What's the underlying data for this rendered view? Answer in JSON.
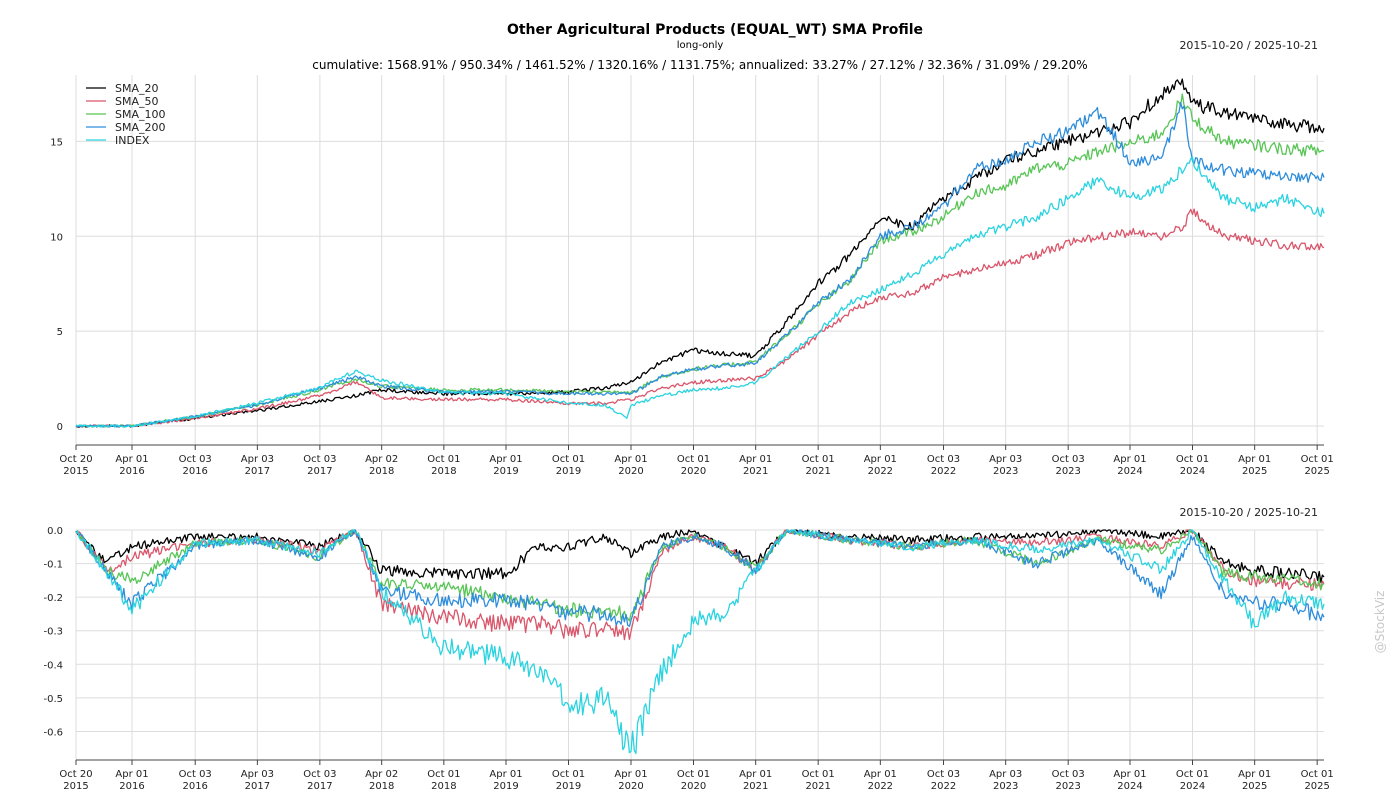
{
  "title": "Other Agricultural Products (EQUAL_WT) SMA Profile",
  "subtitle": "long-only",
  "stats_line": "cumulative: 1568.91% / 950.34% / 1461.52% / 1320.16% / 1131.75%; annualized: 33.27% / 27.12% / 32.36% / 31.09% / 29.20%",
  "date_range_top": "2015-10-20 / 2025-10-21",
  "date_range_bottom": "2015-10-20 / 2025-10-21",
  "watermark": "@StockViz",
  "colors": {
    "SMA_20": "#000000",
    "SMA_50": "#d9566b",
    "SMA_100": "#58c556",
    "SMA_200": "#2e8ddb",
    "INDEX": "#2ad3df"
  },
  "chart_data": [
    {
      "type": "line",
      "panel": "cumulative",
      "ylim": [
        -1,
        18.5
      ],
      "yticks": [
        0,
        5,
        10,
        15
      ],
      "grid": true,
      "legend": "top-left",
      "xticks": [
        {
          "date": "2015-10-20",
          "label": [
            "Oct 20",
            "2015"
          ]
        },
        {
          "date": "2016-04-01",
          "label": [
            "Apr 01",
            "2016"
          ]
        },
        {
          "date": "2016-10-03",
          "label": [
            "Oct 03",
            "2016"
          ]
        },
        {
          "date": "2017-04-03",
          "label": [
            "Apr 03",
            "2017"
          ]
        },
        {
          "date": "2017-10-03",
          "label": [
            "Oct 03",
            "2017"
          ]
        },
        {
          "date": "2018-04-02",
          "label": [
            "Apr 02",
            "2018"
          ]
        },
        {
          "date": "2018-10-01",
          "label": [
            "Oct 01",
            "2018"
          ]
        },
        {
          "date": "2019-04-01",
          "label": [
            "Apr 01",
            "2019"
          ]
        },
        {
          "date": "2019-10-01",
          "label": [
            "Oct 01",
            "2019"
          ]
        },
        {
          "date": "2020-04-01",
          "label": [
            "Apr 01",
            "2020"
          ]
        },
        {
          "date": "2020-10-01",
          "label": [
            "Oct 01",
            "2020"
          ]
        },
        {
          "date": "2021-04-01",
          "label": [
            "Apr 01",
            "2021"
          ]
        },
        {
          "date": "2021-10-01",
          "label": [
            "Oct 01",
            "2021"
          ]
        },
        {
          "date": "2022-04-01",
          "label": [
            "Apr 01",
            "2022"
          ]
        },
        {
          "date": "2022-10-03",
          "label": [
            "Oct 03",
            "2022"
          ]
        },
        {
          "date": "2023-04-03",
          "label": [
            "Apr 03",
            "2023"
          ]
        },
        {
          "date": "2023-10-03",
          "label": [
            "Oct 03",
            "2023"
          ]
        },
        {
          "date": "2024-04-01",
          "label": [
            "Apr 01",
            "2024"
          ]
        },
        {
          "date": "2024-10-01",
          "label": [
            "Oct 01",
            "2024"
          ]
        },
        {
          "date": "2025-04-01",
          "label": [
            "Apr 01",
            "2025"
          ]
        },
        {
          "date": "2025-10-01",
          "label": [
            "Oct 01",
            "2025"
          ]
        }
      ],
      "series": [
        {
          "name": "SMA_20",
          "x": [
            "2015-10-20",
            "2016-04-01",
            "2016-10-01",
            "2017-04-01",
            "2017-10-01",
            "2018-01-15",
            "2018-04-01",
            "2018-10-01",
            "2019-04-01",
            "2019-10-01",
            "2020-01-15",
            "2020-04-01",
            "2020-07-01",
            "2020-10-01",
            "2021-01-01",
            "2021-04-01",
            "2021-07-01",
            "2021-10-01",
            "2022-01-01",
            "2022-04-01",
            "2022-07-01",
            "2022-10-01",
            "2023-01-01",
            "2023-04-01",
            "2023-07-01",
            "2023-10-01",
            "2024-01-01",
            "2024-04-01",
            "2024-07-01",
            "2024-09-01",
            "2024-10-01",
            "2025-01-01",
            "2025-04-01",
            "2025-07-01",
            "2025-10-21"
          ],
          "y": [
            0,
            0,
            0.4,
            0.8,
            1.3,
            1.6,
            1.9,
            1.7,
            1.7,
            1.8,
            2.0,
            2.3,
            3.4,
            4.0,
            3.8,
            3.7,
            5.5,
            7.5,
            9.0,
            11.0,
            10.5,
            12.0,
            13.0,
            14.0,
            14.5,
            15.0,
            15.5,
            16.0,
            17.5,
            18.0,
            17.0,
            16.5,
            16.2,
            15.9,
            15.7
          ]
        },
        {
          "name": "SMA_50",
          "x": [
            "2015-10-20",
            "2016-04-01",
            "2016-10-01",
            "2017-04-01",
            "2017-10-01",
            "2018-01-15",
            "2018-04-01",
            "2018-10-01",
            "2019-04-01",
            "2019-10-01",
            "2020-01-15",
            "2020-04-01",
            "2020-07-01",
            "2020-10-01",
            "2021-01-01",
            "2021-04-01",
            "2021-07-01",
            "2021-10-01",
            "2022-01-01",
            "2022-04-01",
            "2022-07-01",
            "2022-10-01",
            "2023-01-01",
            "2023-04-01",
            "2023-07-01",
            "2023-10-01",
            "2024-01-01",
            "2024-04-01",
            "2024-07-01",
            "2024-09-01",
            "2024-10-01",
            "2025-01-01",
            "2025-04-01",
            "2025-07-01",
            "2025-10-21"
          ],
          "y": [
            0,
            0,
            0.4,
            0.9,
            1.6,
            2.3,
            1.5,
            1.4,
            1.4,
            1.2,
            1.2,
            1.4,
            2.0,
            2.3,
            2.4,
            2.5,
            3.5,
            4.8,
            6.0,
            6.8,
            7.0,
            7.8,
            8.2,
            8.6,
            9.0,
            9.6,
            10.0,
            10.2,
            10.0,
            10.5,
            11.3,
            10.0,
            9.8,
            9.5,
            9.4
          ]
        },
        {
          "name": "SMA_100",
          "x": [
            "2015-10-20",
            "2016-04-01",
            "2016-10-01",
            "2017-04-01",
            "2017-10-01",
            "2018-01-15",
            "2018-04-01",
            "2018-10-01",
            "2019-04-01",
            "2019-10-01",
            "2020-01-15",
            "2020-04-01",
            "2020-07-01",
            "2020-10-01",
            "2021-01-01",
            "2021-04-01",
            "2021-07-01",
            "2021-10-01",
            "2022-01-01",
            "2022-04-01",
            "2022-07-01",
            "2022-10-01",
            "2023-01-01",
            "2023-04-01",
            "2023-07-01",
            "2023-10-01",
            "2024-01-01",
            "2024-04-01",
            "2024-07-01",
            "2024-09-01",
            "2024-10-01",
            "2025-01-01",
            "2025-04-01",
            "2025-07-01",
            "2025-10-21"
          ],
          "y": [
            0,
            0,
            0.5,
            1.1,
            1.9,
            2.5,
            2.1,
            1.9,
            1.9,
            1.8,
            1.8,
            1.8,
            2.6,
            3.0,
            3.2,
            3.4,
            4.8,
            6.4,
            7.6,
            9.8,
            10.2,
            11.0,
            12.3,
            12.6,
            13.6,
            13.8,
            14.5,
            14.9,
            15.4,
            17.2,
            16.2,
            15.0,
            14.8,
            14.6,
            14.5
          ]
        },
        {
          "name": "SMA_200",
          "x": [
            "2015-10-20",
            "2016-04-01",
            "2016-10-01",
            "2017-04-01",
            "2017-10-01",
            "2018-01-15",
            "2018-04-01",
            "2018-10-01",
            "2019-04-01",
            "2019-10-01",
            "2020-01-15",
            "2020-04-01",
            "2020-07-01",
            "2020-10-01",
            "2021-01-01",
            "2021-04-01",
            "2021-07-01",
            "2021-10-01",
            "2022-01-01",
            "2022-04-01",
            "2022-07-01",
            "2022-10-01",
            "2023-01-01",
            "2023-04-01",
            "2023-07-01",
            "2023-10-01",
            "2024-01-01",
            "2024-04-01",
            "2024-07-01",
            "2024-09-01",
            "2024-10-01",
            "2025-01-01",
            "2025-04-01",
            "2025-07-01",
            "2025-10-21"
          ],
          "y": [
            0,
            0,
            0.5,
            1.1,
            2.0,
            2.6,
            2.1,
            1.8,
            1.8,
            1.7,
            1.7,
            1.7,
            2.6,
            3.0,
            3.2,
            3.3,
            4.8,
            6.5,
            7.7,
            10.0,
            10.5,
            11.5,
            13.5,
            14.0,
            15.0,
            15.5,
            16.5,
            14.0,
            14.0,
            17.0,
            14.0,
            13.5,
            13.3,
            13.1,
            13.1
          ]
        },
        {
          "name": "INDEX",
          "x": [
            "2015-10-20",
            "2016-04-01",
            "2016-10-01",
            "2017-04-01",
            "2017-10-01",
            "2018-01-15",
            "2018-04-01",
            "2018-10-01",
            "2019-04-01",
            "2019-10-01",
            "2020-01-15",
            "2020-03-20",
            "2020-04-01",
            "2020-07-01",
            "2020-10-01",
            "2021-01-01",
            "2021-04-01",
            "2021-07-01",
            "2021-10-01",
            "2022-01-01",
            "2022-04-01",
            "2022-07-01",
            "2022-10-01",
            "2023-01-01",
            "2023-04-01",
            "2023-07-01",
            "2023-10-01",
            "2024-01-01",
            "2024-04-01",
            "2024-07-01",
            "2024-09-01",
            "2024-10-01",
            "2025-01-01",
            "2025-04-01",
            "2025-07-01",
            "2025-10-21"
          ],
          "y": [
            0,
            0,
            0.5,
            1.2,
            2.0,
            2.9,
            2.4,
            1.8,
            1.7,
            1.2,
            1.1,
            0.4,
            1.1,
            1.6,
            1.9,
            2.0,
            2.3,
            3.6,
            5.0,
            6.5,
            7.2,
            8.0,
            9.0,
            10.0,
            10.5,
            11.0,
            12.0,
            13.0,
            12.0,
            12.5,
            13.5,
            14.0,
            12.0,
            11.5,
            12.0,
            11.2
          ]
        }
      ]
    },
    {
      "type": "line",
      "panel": "drawdown",
      "ylim": [
        -0.685,
        0
      ],
      "yticks": [
        0.0,
        -0.1,
        -0.2,
        -0.3,
        -0.4,
        -0.5,
        -0.6
      ],
      "ytick_labels": [
        "0.0",
        "-0.1",
        "-0.2",
        "-0.3",
        "-0.4",
        "-0.5",
        "-0.6"
      ],
      "grid": true,
      "series": [
        {
          "name": "SMA_20",
          "x": [
            "2015-10-20",
            "2016-01-15",
            "2016-04-01",
            "2016-10-01",
            "2017-04-01",
            "2017-10-01",
            "2018-01-15",
            "2018-04-01",
            "2018-10-01",
            "2019-04-01",
            "2019-07-01",
            "2019-10-01",
            "2020-01-15",
            "2020-04-01",
            "2020-07-01",
            "2020-10-01",
            "2021-01-01",
            "2021-04-01",
            "2021-07-01",
            "2022-01-01",
            "2022-07-01",
            "2023-01-01",
            "2023-07-01",
            "2024-01-01",
            "2024-07-01",
            "2024-10-01",
            "2025-01-01",
            "2025-04-01",
            "2025-07-01",
            "2025-10-21"
          ],
          "y": [
            0,
            -0.1,
            -0.05,
            -0.02,
            -0.02,
            -0.05,
            0,
            -0.12,
            -0.13,
            -0.13,
            -0.05,
            -0.05,
            -0.02,
            -0.07,
            -0.02,
            0,
            -0.05,
            -0.1,
            0,
            -0.02,
            -0.03,
            -0.02,
            -0.02,
            0,
            -0.02,
            0,
            -0.1,
            -0.12,
            -0.13,
            -0.14
          ]
        },
        {
          "name": "SMA_50",
          "x": [
            "2015-10-20",
            "2016-01-15",
            "2016-04-01",
            "2016-10-01",
            "2017-04-01",
            "2017-10-01",
            "2018-01-15",
            "2018-04-01",
            "2018-10-01",
            "2019-04-01",
            "2019-07-01",
            "2019-10-01",
            "2020-01-15",
            "2020-04-01",
            "2020-07-01",
            "2020-10-01",
            "2021-01-01",
            "2021-04-01",
            "2021-07-01",
            "2022-01-01",
            "2022-07-01",
            "2023-01-01",
            "2023-07-01",
            "2024-01-01",
            "2024-07-01",
            "2024-10-01",
            "2025-01-01",
            "2025-04-01",
            "2025-07-01",
            "2025-10-21"
          ],
          "y": [
            0,
            -0.12,
            -0.08,
            -0.04,
            -0.03,
            -0.06,
            0,
            -0.22,
            -0.26,
            -0.28,
            -0.28,
            -0.3,
            -0.29,
            -0.31,
            -0.06,
            -0.02,
            -0.05,
            -0.12,
            0,
            -0.03,
            -0.05,
            -0.03,
            -0.04,
            -0.02,
            -0.05,
            0,
            -0.12,
            -0.15,
            -0.16,
            -0.16
          ]
        },
        {
          "name": "SMA_100",
          "x": [
            "2015-10-20",
            "2016-01-15",
            "2016-04-01",
            "2016-10-01",
            "2017-04-01",
            "2017-10-01",
            "2018-01-15",
            "2018-04-01",
            "2018-10-01",
            "2019-04-01",
            "2019-07-01",
            "2019-10-01",
            "2020-01-15",
            "2020-04-01",
            "2020-07-01",
            "2020-10-01",
            "2021-01-01",
            "2021-04-01",
            "2021-07-01",
            "2022-01-01",
            "2022-07-01",
            "2023-01-01",
            "2023-07-01",
            "2024-01-01",
            "2024-07-01",
            "2024-10-01",
            "2025-01-01",
            "2025-04-01",
            "2025-07-01",
            "2025-10-21"
          ],
          "y": [
            0,
            -0.12,
            -0.15,
            -0.04,
            -0.03,
            -0.08,
            0,
            -0.16,
            -0.17,
            -0.2,
            -0.22,
            -0.24,
            -0.24,
            -0.25,
            -0.05,
            -0.02,
            -0.05,
            -0.12,
            0,
            -0.03,
            -0.05,
            -0.03,
            -0.1,
            -0.03,
            -0.06,
            0,
            -0.13,
            -0.14,
            -0.15,
            -0.16
          ]
        },
        {
          "name": "SMA_200",
          "x": [
            "2015-10-20",
            "2016-01-15",
            "2016-04-01",
            "2016-10-01",
            "2017-04-01",
            "2017-10-01",
            "2018-01-15",
            "2018-04-01",
            "2018-10-01",
            "2019-04-01",
            "2019-07-01",
            "2019-10-01",
            "2020-01-15",
            "2020-04-01",
            "2020-07-01",
            "2020-10-01",
            "2021-01-01",
            "2021-04-01",
            "2021-07-01",
            "2022-01-01",
            "2022-07-01",
            "2023-01-01",
            "2023-07-01",
            "2024-01-01",
            "2024-07-01",
            "2024-10-01",
            "2025-01-01",
            "2025-04-01",
            "2025-07-01",
            "2025-10-21"
          ],
          "y": [
            0,
            -0.12,
            -0.22,
            -0.05,
            -0.03,
            -0.08,
            0,
            -0.18,
            -0.21,
            -0.21,
            -0.22,
            -0.25,
            -0.25,
            -0.27,
            -0.05,
            -0.02,
            -0.05,
            -0.12,
            0,
            -0.03,
            -0.05,
            -0.03,
            -0.1,
            -0.03,
            -0.19,
            -0.02,
            -0.19,
            -0.22,
            -0.22,
            -0.26
          ]
        },
        {
          "name": "INDEX",
          "x": [
            "2015-10-20",
            "2016-01-15",
            "2016-04-01",
            "2016-10-01",
            "2017-04-01",
            "2017-10-01",
            "2018-01-15",
            "2018-04-01",
            "2018-10-01",
            "2019-04-01",
            "2019-07-01",
            "2019-10-01",
            "2020-01-15",
            "2020-04-01",
            "2020-07-01",
            "2020-10-01",
            "2021-01-01",
            "2021-04-01",
            "2021-07-01",
            "2022-01-01",
            "2022-07-01",
            "2023-01-01",
            "2023-07-01",
            "2024-01-01",
            "2024-07-01",
            "2024-10-01",
            "2025-01-01",
            "2025-04-01",
            "2025-07-01",
            "2025-10-21"
          ],
          "y": [
            0,
            -0.12,
            -0.24,
            -0.04,
            -0.03,
            -0.07,
            0,
            -0.18,
            -0.35,
            -0.38,
            -0.42,
            -0.52,
            -0.5,
            -0.66,
            -0.42,
            -0.27,
            -0.25,
            -0.12,
            0,
            -0.03,
            -0.05,
            -0.03,
            -0.06,
            -0.03,
            -0.12,
            0,
            -0.15,
            -0.28,
            -0.2,
            -0.22
          ]
        }
      ]
    }
  ]
}
